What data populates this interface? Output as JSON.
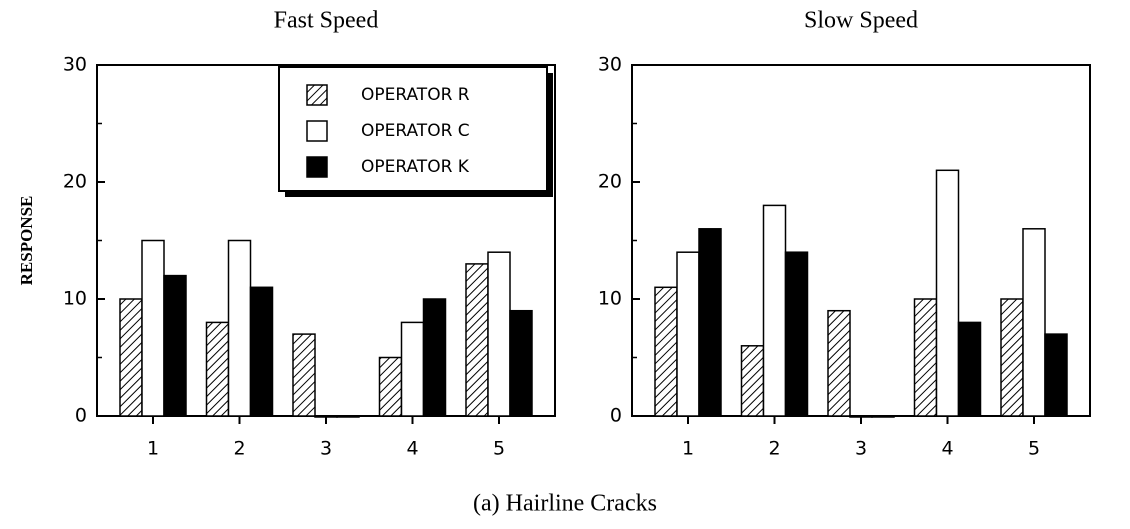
{
  "caption": "(a) Hairline Cracks",
  "chart_data": [
    {
      "type": "bar",
      "title": "Fast Speed",
      "y_label": "RESPONSE",
      "categories": [
        "1",
        "2",
        "3",
        "4",
        "5"
      ],
      "series": [
        {
          "name": "OPERATOR R",
          "color": "#000000",
          "hatch": true,
          "values": [
            10,
            8,
            7,
            5,
            13
          ]
        },
        {
          "name": "OPERATOR C",
          "color": "#ffffff",
          "values": [
            15,
            15,
            0,
            8,
            14
          ]
        },
        {
          "name": "OPERATOR K",
          "color": "#000000",
          "values": [
            12,
            11,
            0,
            10,
            9
          ]
        }
      ],
      "ylim": [
        0,
        30
      ],
      "yticks": [
        0,
        10,
        20,
        30
      ],
      "legend": "upper right"
    },
    {
      "type": "bar",
      "title": "Slow Speed",
      "categories": [
        "1",
        "2",
        "3",
        "4",
        "5"
      ],
      "series": [
        {
          "color": "#000000",
          "hatch": true,
          "values": [
            11,
            6,
            9,
            10,
            10
          ]
        },
        {
          "color": "#ffffff",
          "values": [
            14,
            18,
            0,
            21,
            16
          ]
        },
        {
          "color": "#000000",
          "values": [
            16,
            14,
            0,
            8,
            7
          ]
        }
      ],
      "ylim": [
        0,
        30
      ],
      "yticks": [
        0,
        10,
        20,
        30
      ]
    }
  ]
}
